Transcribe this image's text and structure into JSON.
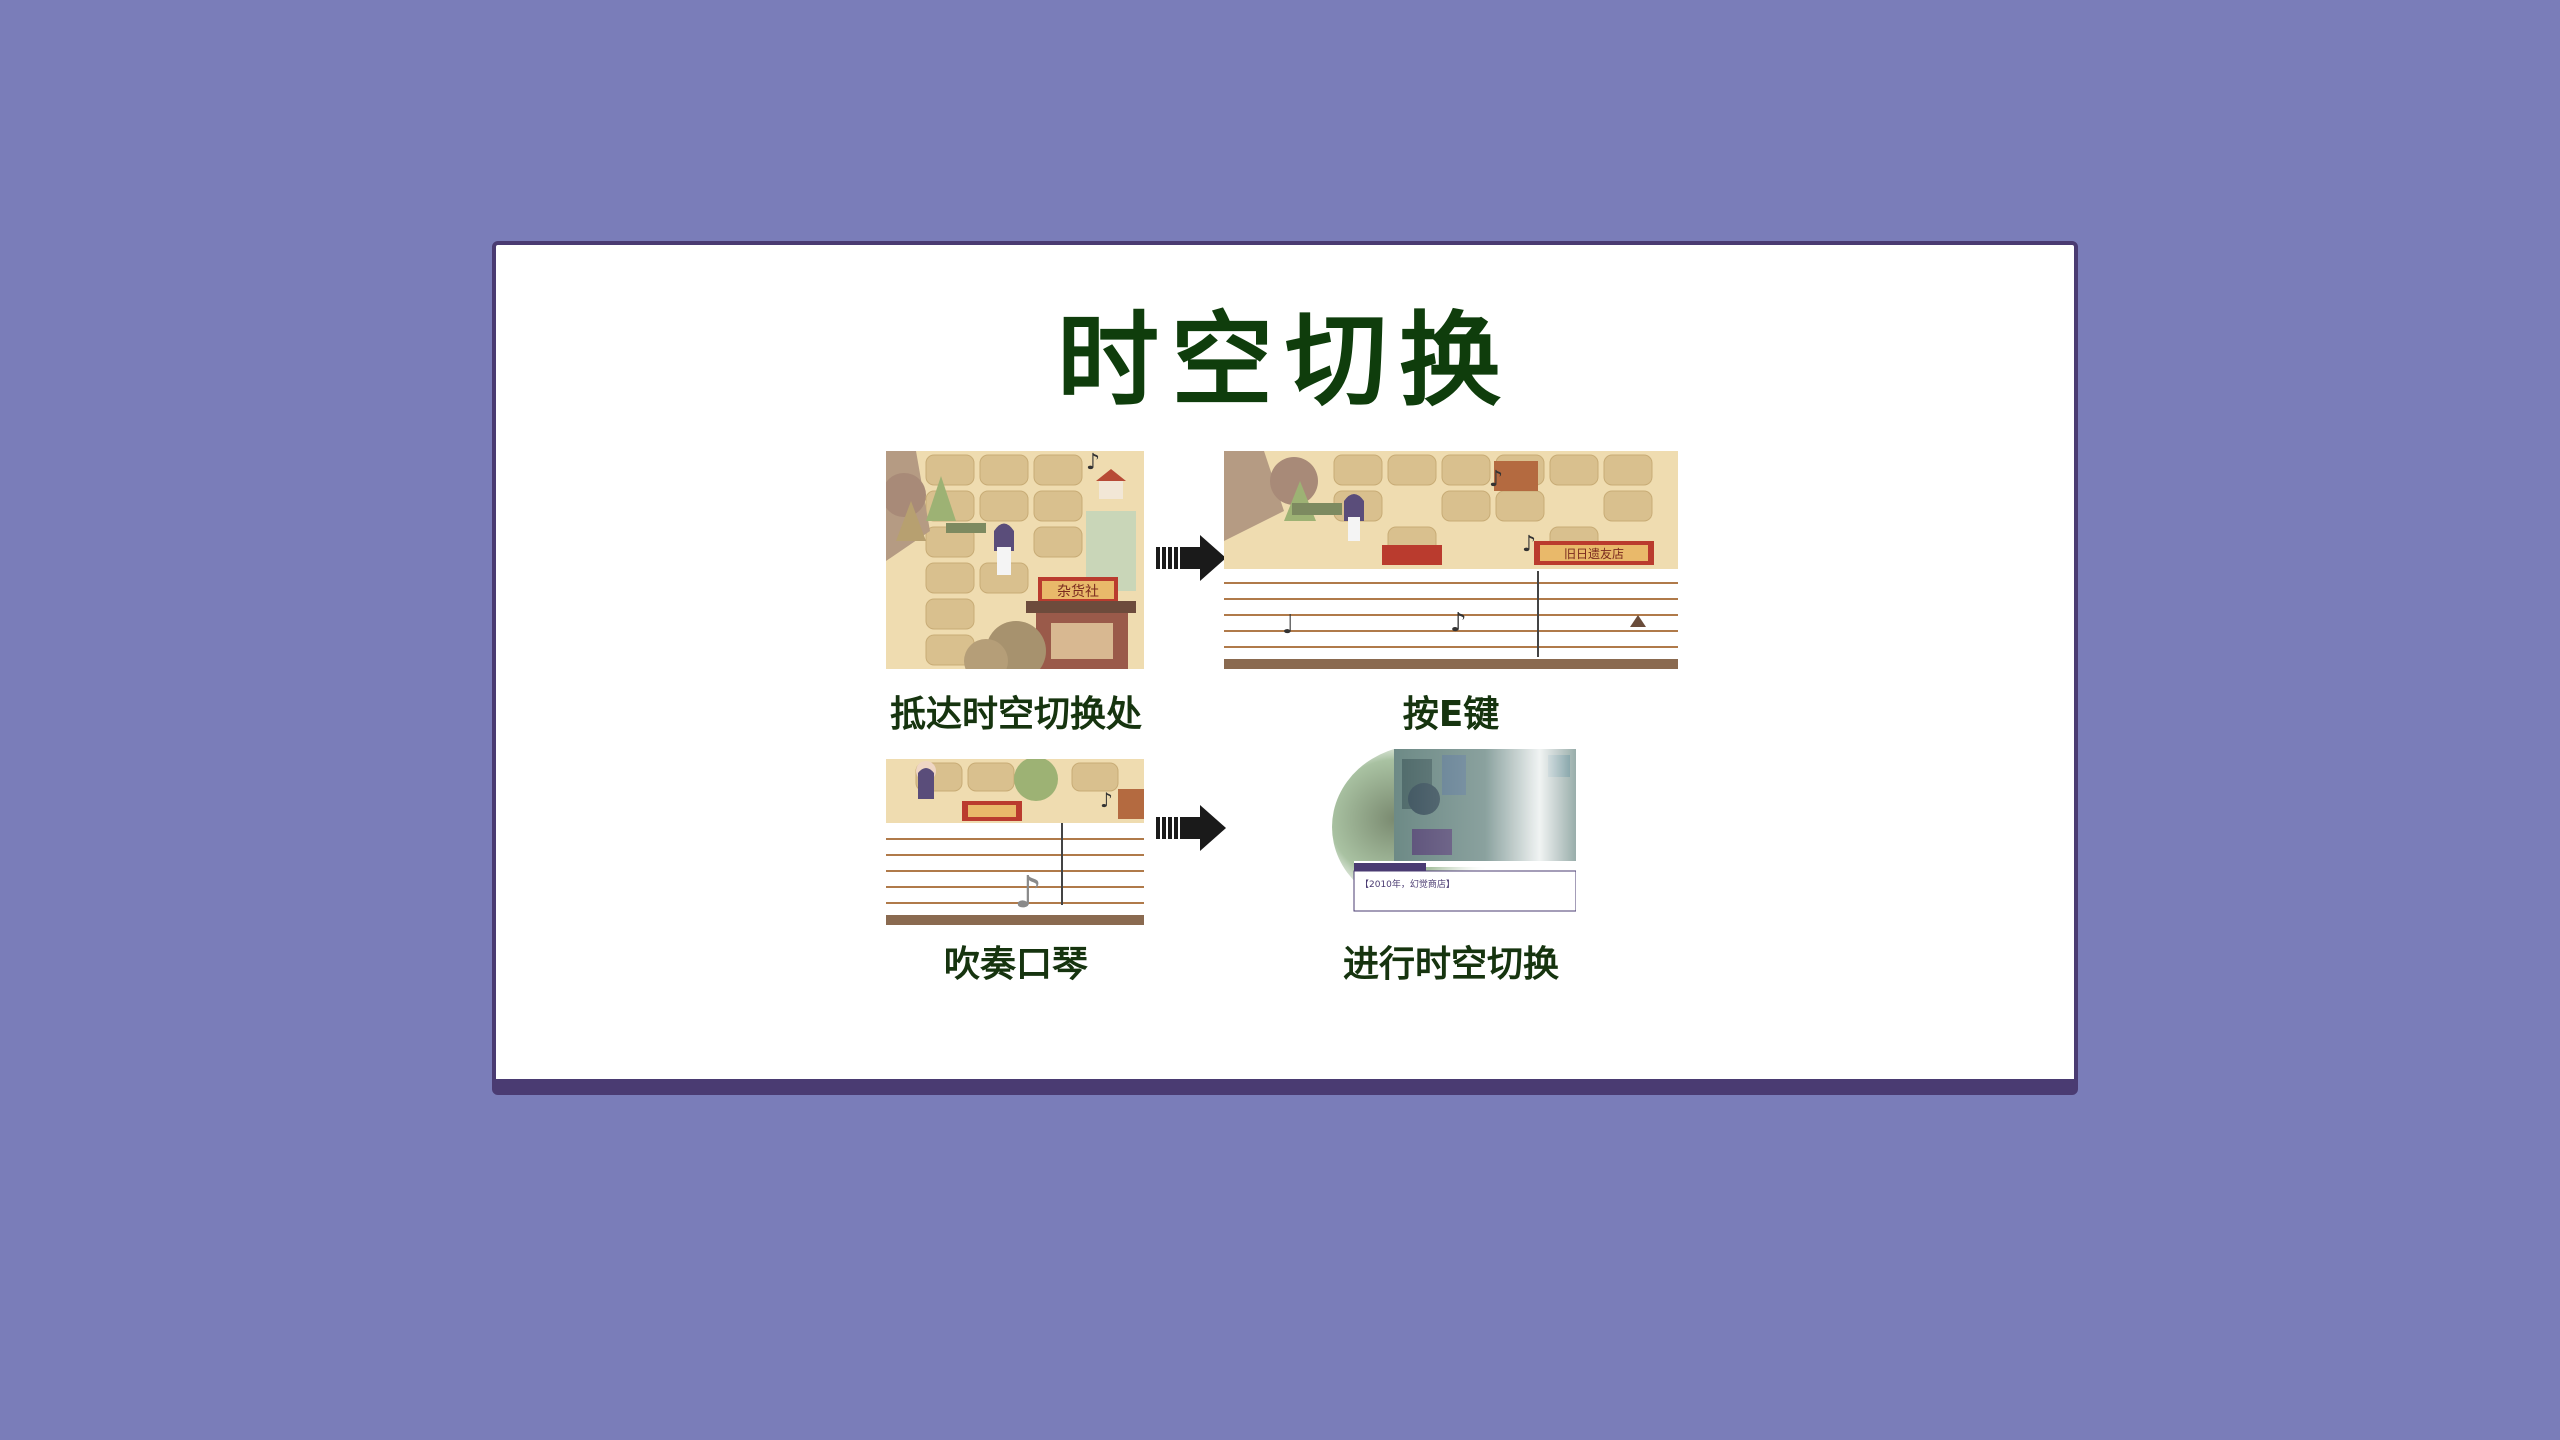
{
  "slide": {
    "title": "时空切换",
    "steps": [
      {
        "caption": "抵达时空切换处",
        "scene": "map-scene"
      },
      {
        "caption": "按E键",
        "scene": "map-with-staff-scene"
      },
      {
        "caption": "吹奏口琴",
        "scene": "staff-closeup-scene"
      },
      {
        "caption": "进行时空切换",
        "scene": "transition-scene"
      }
    ],
    "in_game_text": {
      "shop_sign": "杂货社",
      "shop_sign_2": "旧日遗友店",
      "dialog_text": "【2010年，幻觉商店】"
    }
  },
  "colors": {
    "background": "#7a7db9",
    "card": "#ffffff",
    "frame": "#4a3b72",
    "title": "#0f3d0c",
    "caption": "#16340f"
  }
}
